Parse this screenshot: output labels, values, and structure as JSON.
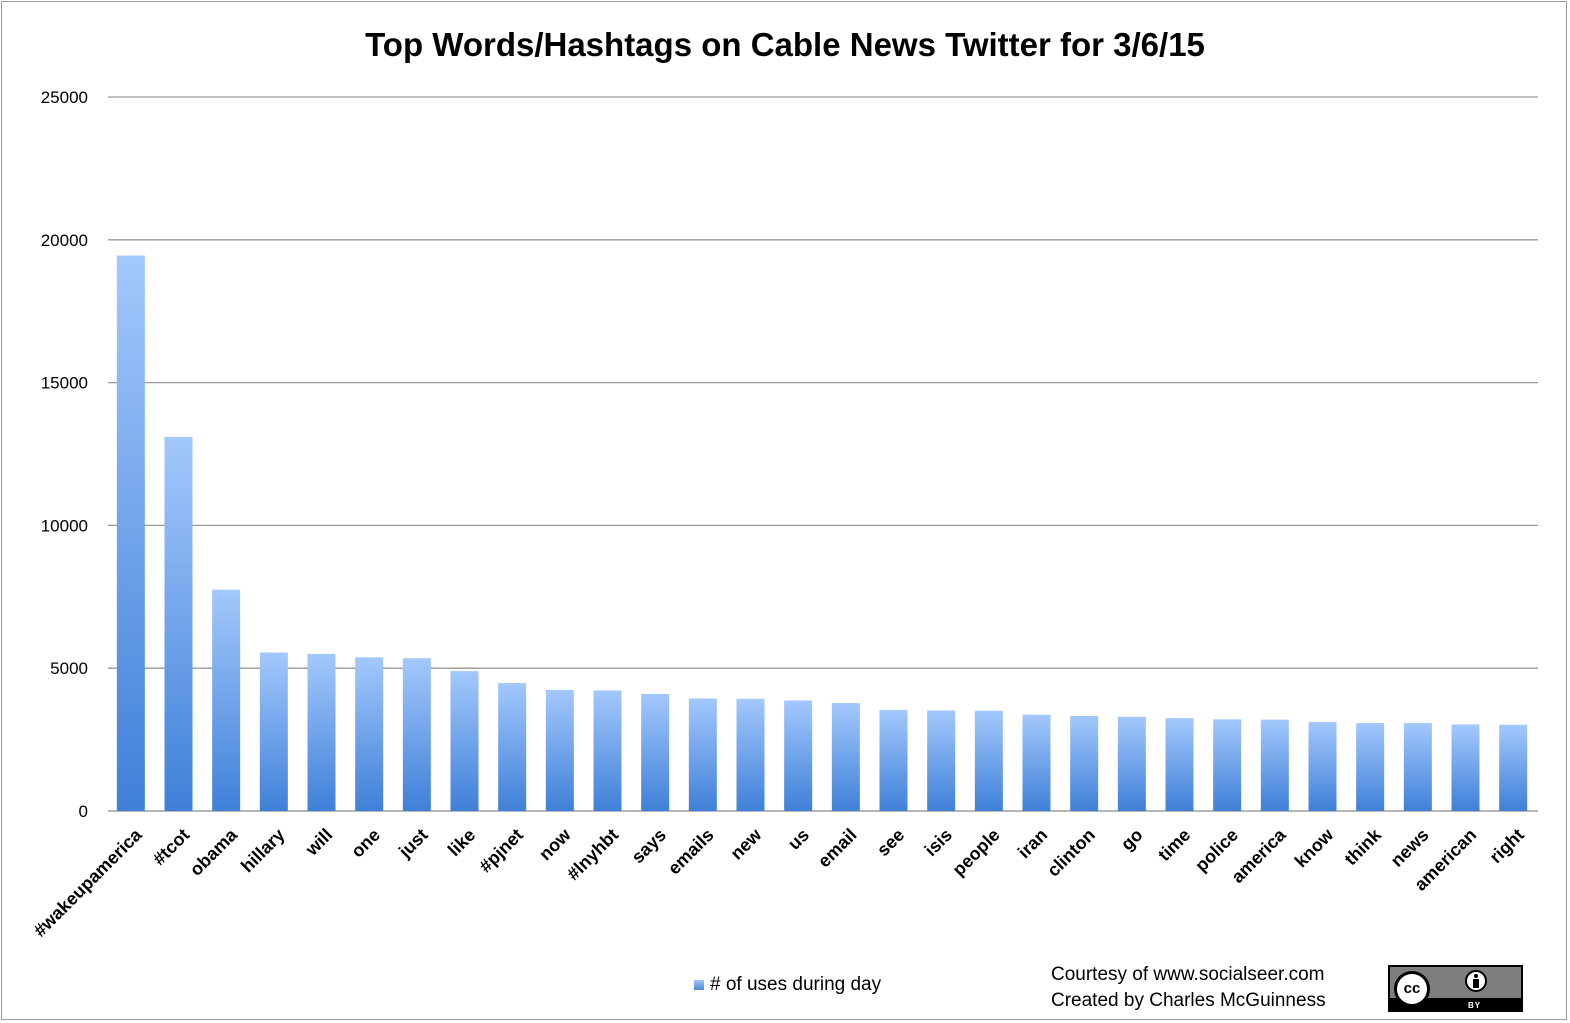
{
  "chart_data": {
    "type": "bar",
    "title": "Top Words/Hashtags on Cable News Twitter for 3/6/15",
    "categories": [
      "#wakeupamerica",
      "#tcot",
      "obama",
      "hillary",
      "will",
      "one",
      "just",
      "like",
      "#pjnet",
      "now",
      "#lnyhbt",
      "says",
      "emails",
      "new",
      "us",
      "email",
      "see",
      "isis",
      "people",
      "iran",
      "clinton",
      "go",
      "time",
      "police",
      "america",
      "know",
      "think",
      "news",
      "american",
      "right"
    ],
    "series": [
      {
        "name": "# of uses during day",
        "values": [
          19450,
          13100,
          7750,
          5550,
          5500,
          5380,
          5350,
          4900,
          4480,
          4240,
          4220,
          4100,
          3940,
          3930,
          3870,
          3780,
          3540,
          3520,
          3510,
          3370,
          3330,
          3300,
          3250,
          3210,
          3200,
          3120,
          3080,
          3080,
          3030,
          3020
        ]
      }
    ],
    "yticks": [
      "0",
      "5000",
      "10000",
      "15000",
      "20000",
      "25000"
    ],
    "ylim": [
      0,
      25000
    ],
    "grid": true,
    "legend": "bottom-center",
    "bar_color_top": "#a3c8fc",
    "bar_color_bottom": "#3f80d8"
  },
  "credits": {
    "line1": "Courtesy of www.socialseer.com",
    "line2": "Created by Charles McGuinness"
  },
  "badge": {
    "cc_text": "cc",
    "by_text": "BY"
  }
}
